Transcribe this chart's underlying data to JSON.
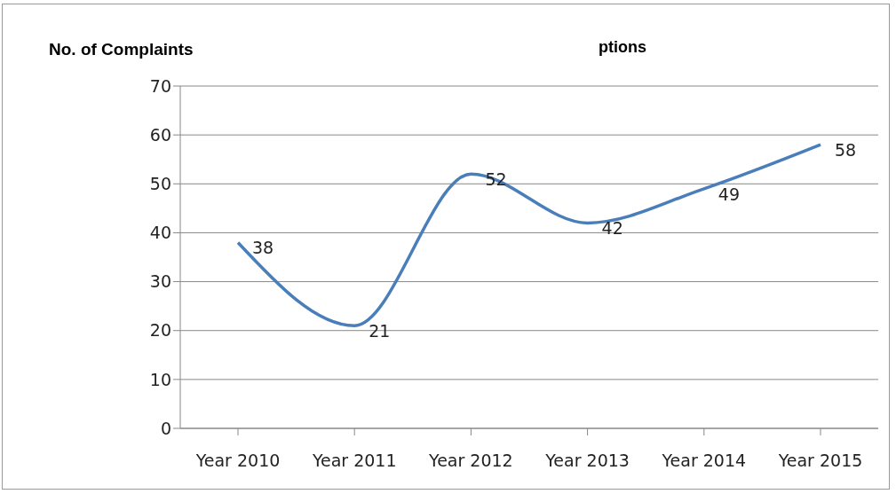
{
  "chart_data": {
    "type": "line",
    "title": "ptions",
    "ylabel": "No. of Complaints",
    "categories": [
      "Year 2010",
      "Year 2011",
      "Year 2012",
      "Year 2013",
      "Year 2014",
      "Year 2015"
    ],
    "series": [
      {
        "color": "#4a7ebb",
        "values": [
          38,
          21,
          52,
          42,
          49,
          58
        ]
      }
    ],
    "ylim": [
      0,
      70
    ],
    "yticks": [
      0,
      10,
      20,
      30,
      40,
      50,
      60,
      70
    ],
    "grid": "y",
    "marker": "none",
    "line_style": "solid",
    "data_labels": true
  }
}
